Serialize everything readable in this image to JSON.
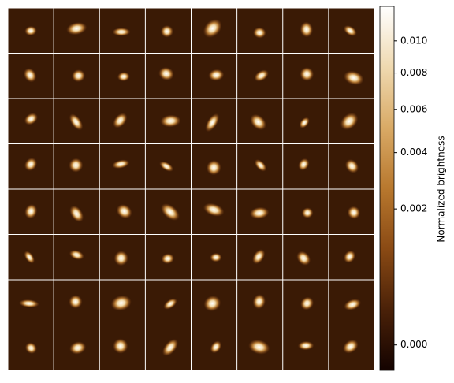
{
  "chart_data": {
    "type": "image_grid",
    "rows": 8,
    "cols": 8,
    "panel_background": "#3a1a05",
    "colorbar": {
      "label": "Normalized brightness",
      "scale": "sqrt",
      "clim": [
        -7e-05,
        0.0124
      ],
      "ticks": [
        {
          "value": 0,
          "label": "0.000"
        },
        {
          "value": 0.002,
          "label": "0.002"
        },
        {
          "value": 0.004,
          "label": "0.004"
        },
        {
          "value": 0.006,
          "label": "0.006"
        },
        {
          "value": 0.008,
          "label": "0.008"
        },
        {
          "value": 0.01,
          "label": "0.010"
        }
      ],
      "colormap": [
        "#140300",
        "#4a2108",
        "#8a4a14",
        "#b8782e",
        "#d9aa66",
        "#efd9b0",
        "#ffffff"
      ]
    }
  }
}
